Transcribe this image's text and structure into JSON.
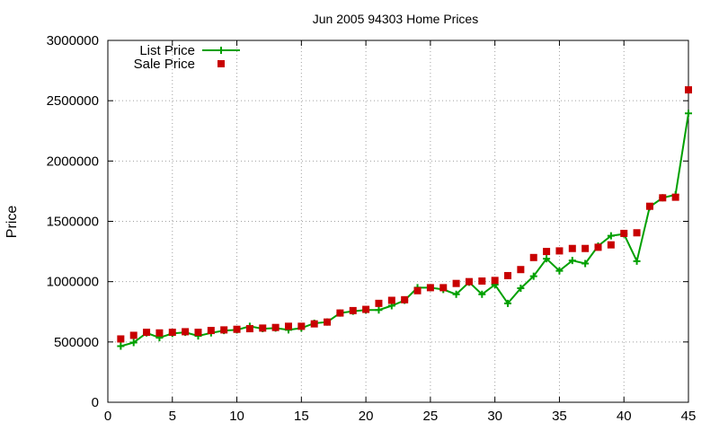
{
  "chart_data": {
    "type": "line",
    "title": "Jun 2005 94303 Home Prices",
    "xlabel": "",
    "ylabel": "Price",
    "xlim": [
      0,
      45
    ],
    "ylim": [
      0,
      3000000
    ],
    "x_ticks": [
      0,
      5,
      10,
      15,
      20,
      25,
      30,
      35,
      40,
      45
    ],
    "y_ticks": [
      0,
      500000,
      1000000,
      1500000,
      2000000,
      2500000,
      3000000
    ],
    "x_tick_labels": [
      "0",
      "5",
      "10",
      "15",
      "20",
      "25",
      "30",
      "35",
      "40",
      "45"
    ],
    "y_tick_labels": [
      "0",
      "500000",
      "1000000",
      "1500000",
      "2000000",
      "2500000",
      "3000000"
    ],
    "grid": true,
    "legend_position": "top-left",
    "x": [
      1,
      2,
      3,
      4,
      5,
      6,
      7,
      8,
      9,
      10,
      11,
      12,
      13,
      14,
      15,
      16,
      17,
      18,
      19,
      20,
      21,
      22,
      23,
      24,
      25,
      26,
      27,
      28,
      29,
      30,
      31,
      32,
      33,
      34,
      35,
      36,
      37,
      38,
      39,
      40,
      41,
      42,
      43,
      44,
      45
    ],
    "series": [
      {
        "name": "List Price",
        "style": "line-plus",
        "color": "#00a000",
        "values": [
          465000,
          495000,
          575000,
          535000,
          570000,
          580000,
          550000,
          575000,
          595000,
          600000,
          630000,
          610000,
          615000,
          600000,
          615000,
          655000,
          665000,
          740000,
          755000,
          765000,
          765000,
          800000,
          845000,
          950000,
          950000,
          935000,
          895000,
          995000,
          895000,
          975000,
          820000,
          945000,
          1045000,
          1190000,
          1090000,
          1175000,
          1150000,
          1295000,
          1380000,
          1395000,
          1170000,
          1620000,
          1695000,
          1720000,
          2395000
        ]
      },
      {
        "name": "Sale Price",
        "style": "square-marker",
        "color": "#c80000",
        "values": [
          525000,
          555000,
          580000,
          575000,
          580000,
          585000,
          580000,
          595000,
          600000,
          605000,
          610000,
          615000,
          620000,
          630000,
          630000,
          650000,
          665000,
          740000,
          760000,
          770000,
          820000,
          845000,
          850000,
          925000,
          950000,
          950000,
          985000,
          1000000,
          1005000,
          1010000,
          1050000,
          1100000,
          1200000,
          1250000,
          1255000,
          1275000,
          1275000,
          1285000,
          1305000,
          1400000,
          1405000,
          1625000,
          1695000,
          1700000,
          2590000
        ]
      }
    ]
  }
}
